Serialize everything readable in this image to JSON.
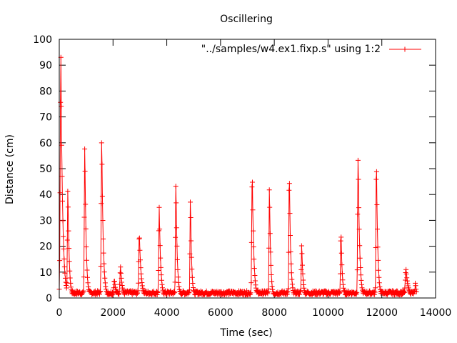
{
  "chart_data": {
    "type": "line",
    "title": "Oscillering",
    "xlabel": "Time (sec)",
    "ylabel": "Distance (cm)",
    "xlim": [
      0,
      14000
    ],
    "ylim": [
      0,
      100
    ],
    "x_ticks": [
      0,
      2000,
      4000,
      6000,
      8000,
      10000,
      12000,
      14000
    ],
    "y_ticks": [
      0,
      10,
      20,
      30,
      40,
      50,
      60,
      70,
      80,
      90,
      100
    ],
    "grid": false,
    "legend_position": "top-right",
    "marker": "+",
    "series": [
      {
        "name": "\"../samples/w4.ex1.fixp.s\" using 1:2",
        "color": "#ff0000",
        "peaks": [
          {
            "t": 60,
            "h": 93,
            "w": 60
          },
          {
            "t": 320,
            "h": 43,
            "w": 45
          },
          {
            "t": 950,
            "h": 60,
            "w": 45
          },
          {
            "t": 1580,
            "h": 62,
            "w": 50
          },
          {
            "t": 2050,
            "h": 7,
            "w": 60
          },
          {
            "t": 2280,
            "h": 12,
            "w": 60
          },
          {
            "t": 2980,
            "h": 25,
            "w": 60
          },
          {
            "t": 3720,
            "h": 35,
            "w": 50
          },
          {
            "t": 4340,
            "h": 45,
            "w": 45
          },
          {
            "t": 4880,
            "h": 39,
            "w": 40
          },
          {
            "t": 7180,
            "h": 49,
            "w": 50
          },
          {
            "t": 7820,
            "h": 44,
            "w": 40
          },
          {
            "t": 8560,
            "h": 49,
            "w": 45
          },
          {
            "t": 9020,
            "h": 21,
            "w": 45
          },
          {
            "t": 10480,
            "h": 26,
            "w": 45
          },
          {
            "t": 11120,
            "h": 55,
            "w": 50
          },
          {
            "t": 11800,
            "h": 54,
            "w": 45
          },
          {
            "t": 12900,
            "h": 11,
            "w": 80
          },
          {
            "t": 13250,
            "h": 6,
            "w": 40
          }
        ],
        "baseline": 2,
        "x_end": 13300
      }
    ]
  }
}
